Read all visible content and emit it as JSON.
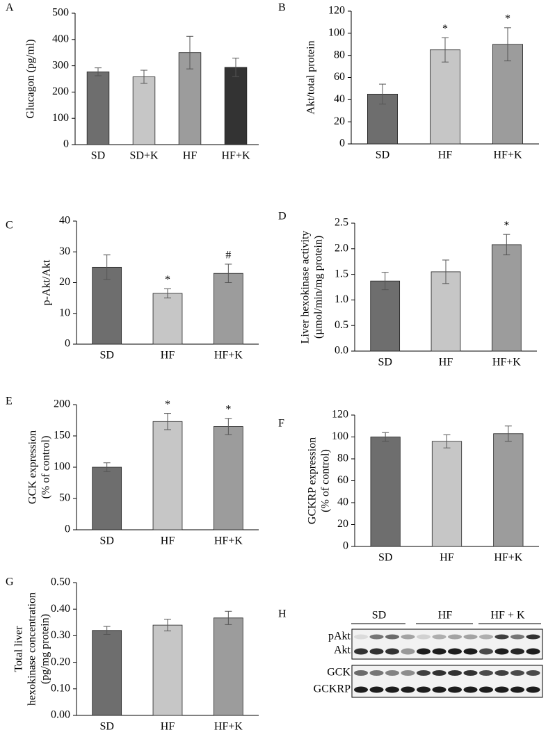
{
  "chart_data": [
    {
      "type": "bar",
      "panel": "A",
      "ylabel": [
        "Glucagon  (pg/ml)"
      ],
      "categories": [
        "SD",
        "SD+K",
        "HF",
        "HF+K"
      ],
      "values": [
        277,
        258,
        350,
        294
      ],
      "errors": [
        15,
        25,
        62,
        35
      ],
      "colors": [
        "#6e6e6e",
        "#c6c6c6",
        "#9c9c9c",
        "#333333"
      ],
      "ylim": [
        0,
        500
      ],
      "yticks": [
        0,
        100,
        200,
        300,
        400,
        500
      ]
    },
    {
      "type": "bar",
      "panel": "B",
      "ylabel": [
        "Akt/total protein"
      ],
      "categories": [
        "SD",
        "HF",
        "HF+K"
      ],
      "values": [
        45,
        85,
        90
      ],
      "errors": [
        9,
        11,
        15
      ],
      "annotations": [
        null,
        "*",
        "*"
      ],
      "colors": [
        "#6e6e6e",
        "#c6c6c6",
        "#9c9c9c"
      ],
      "ylim": [
        0,
        120
      ],
      "yticks": [
        0,
        20,
        40,
        60,
        80,
        100,
        120
      ]
    },
    {
      "type": "bar",
      "panel": "C",
      "ylabel": [
        "p-Akt/Akt"
      ],
      "categories": [
        "SD",
        "HF",
        "HF+K"
      ],
      "values": [
        25,
        16.5,
        23
      ],
      "errors": [
        4,
        1.5,
        3
      ],
      "annotations": [
        null,
        "*",
        "#"
      ],
      "colors": [
        "#6e6e6e",
        "#c6c6c6",
        "#9c9c9c"
      ],
      "ylim": [
        0,
        40
      ],
      "yticks": [
        0,
        10,
        20,
        30,
        40
      ]
    },
    {
      "type": "bar",
      "panel": "D",
      "ylabel": [
        "Liver  hexokinase activity",
        "(µmol/min/mg protein)"
      ],
      "categories": [
        "SD",
        "HF",
        "HF+K"
      ],
      "values": [
        1.37,
        1.55,
        2.08
      ],
      "errors": [
        0.17,
        0.23,
        0.2
      ],
      "annotations": [
        null,
        null,
        "*"
      ],
      "colors": [
        "#6e6e6e",
        "#c6c6c6",
        "#9c9c9c"
      ],
      "ylim": [
        0,
        2.5
      ],
      "yticks": [
        {
          "value": 0,
          "label": "0.0"
        },
        0.5,
        {
          "value": 1,
          "label": "1.0"
        },
        1.5,
        {
          "value": 2,
          "label": "2.0"
        },
        2.5
      ]
    },
    {
      "type": "bar",
      "panel": "E",
      "ylabel": [
        "GCK expression",
        "(% of control)"
      ],
      "categories": [
        "SD",
        "HF",
        "HF+K"
      ],
      "values": [
        100,
        173,
        165
      ],
      "errors": [
        7,
        13,
        13
      ],
      "annotations": [
        null,
        "*",
        "*"
      ],
      "colors": [
        "#6e6e6e",
        "#c6c6c6",
        "#9c9c9c"
      ],
      "ylim": [
        0,
        200
      ],
      "yticks": [
        0,
        50,
        100,
        150,
        200
      ]
    },
    {
      "type": "bar",
      "panel": "F",
      "ylabel": [
        "GCKRP expression",
        "(% of control)"
      ],
      "categories": [
        "SD",
        "HF",
        "HF+K"
      ],
      "values": [
        100,
        96,
        103
      ],
      "errors": [
        4,
        6,
        7
      ],
      "colors": [
        "#6e6e6e",
        "#c6c6c6",
        "#9c9c9c"
      ],
      "ylim": [
        0,
        120
      ],
      "yticks": [
        0,
        20,
        40,
        60,
        80,
        100,
        120
      ]
    },
    {
      "type": "bar",
      "panel": "G",
      "ylabel": [
        "Total liver",
        "hexokinase concentration",
        "(pg/mg protein)"
      ],
      "categories": [
        "SD",
        "HF",
        "HF+K"
      ],
      "values": [
        0.32,
        0.34,
        0.367
      ],
      "errors": [
        0.015,
        0.022,
        0.025
      ],
      "colors": [
        "#6e6e6e",
        "#c6c6c6",
        "#9c9c9c"
      ],
      "ylim": [
        0,
        0.5
      ],
      "yticks": [
        {
          "value": 0,
          "label": "0.00"
        },
        {
          "value": 0.1,
          "label": "0.10"
        },
        {
          "value": 0.2,
          "label": "0.20"
        },
        {
          "value": 0.3,
          "label": "0.30"
        },
        {
          "value": 0.4,
          "label": "0.40"
        },
        {
          "value": 0.5,
          "label": "0.50"
        }
      ]
    }
  ],
  "blot": {
    "panel": "H",
    "groups": [
      "SD",
      "HF",
      "HF + K"
    ],
    "rows": [
      "pAkt",
      "Akt",
      "GCK",
      "GCKRP"
    ]
  }
}
